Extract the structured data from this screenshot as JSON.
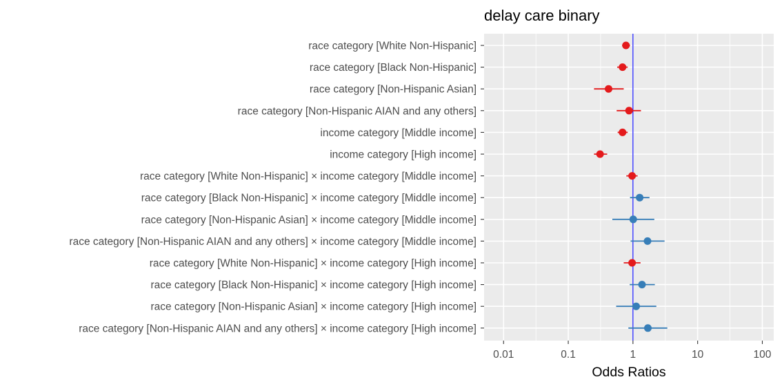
{
  "chart_data": {
    "type": "forest",
    "title": "delay care binary",
    "xlabel": "Odds Ratios",
    "ylabel": "",
    "x_scale": "log10",
    "xlim": [
      0.005,
      150
    ],
    "x_ticks": [
      {
        "value": 0.01,
        "label": "0.01"
      },
      {
        "value": 0.1,
        "label": "0.1"
      },
      {
        "value": 1,
        "label": "1"
      },
      {
        "value": 10,
        "label": "10"
      },
      {
        "value": 100,
        "label": "100"
      }
    ],
    "reference_line": 1,
    "grid": true,
    "colors": {
      "below_1": "#e41a1c",
      "above_1": "#377eb8",
      "reference": "#0000ff",
      "panel_bg": "#ebebeb",
      "grid": "#ffffff"
    },
    "terms": [
      {
        "label": "race category [White Non-Hispanic]",
        "estimate": 0.78,
        "ci_low": 0.68,
        "ci_high": 0.9
      },
      {
        "label": "race category [Black Non-Hispanic]",
        "estimate": 0.69,
        "ci_low": 0.57,
        "ci_high": 0.83
      },
      {
        "label": "race category [Non-Hispanic Asian]",
        "estimate": 0.42,
        "ci_low": 0.25,
        "ci_high": 0.72
      },
      {
        "label": "race category [Non-Hispanic AIAN and any others]",
        "estimate": 0.87,
        "ci_low": 0.56,
        "ci_high": 1.33
      },
      {
        "label": "income category [Middle income]",
        "estimate": 0.69,
        "ci_low": 0.58,
        "ci_high": 0.83
      },
      {
        "label": "income category [High income]",
        "estimate": 0.31,
        "ci_low": 0.25,
        "ci_high": 0.4
      },
      {
        "label": "race category [White Non-Hispanic] × income category [Middle income]",
        "estimate": 0.97,
        "ci_low": 0.79,
        "ci_high": 1.18
      },
      {
        "label": "race category [Black Non-Hispanic] × income category [Middle income]",
        "estimate": 1.27,
        "ci_low": 0.9,
        "ci_high": 1.8
      },
      {
        "label": "race category [Non-Hispanic Asian] × income category [Middle income]",
        "estimate": 1.01,
        "ci_low": 0.48,
        "ci_high": 2.14
      },
      {
        "label": "race category [Non-Hispanic AIAN and any others] × income category [Middle income]",
        "estimate": 1.68,
        "ci_low": 0.92,
        "ci_high": 3.08
      },
      {
        "label": "race category [White Non-Hispanic] × income category [High income]",
        "estimate": 0.97,
        "ci_low": 0.72,
        "ci_high": 1.31
      },
      {
        "label": "race category [Black Non-Hispanic] × income category [High income]",
        "estimate": 1.38,
        "ci_low": 0.89,
        "ci_high": 2.18
      },
      {
        "label": "race category [Non-Hispanic Asian] × income category [High income]",
        "estimate": 1.12,
        "ci_low": 0.55,
        "ci_high": 2.3
      },
      {
        "label": "race category [Non-Hispanic AIAN and any others] × income category [High income]",
        "estimate": 1.7,
        "ci_low": 0.85,
        "ci_high": 3.4
      }
    ]
  }
}
